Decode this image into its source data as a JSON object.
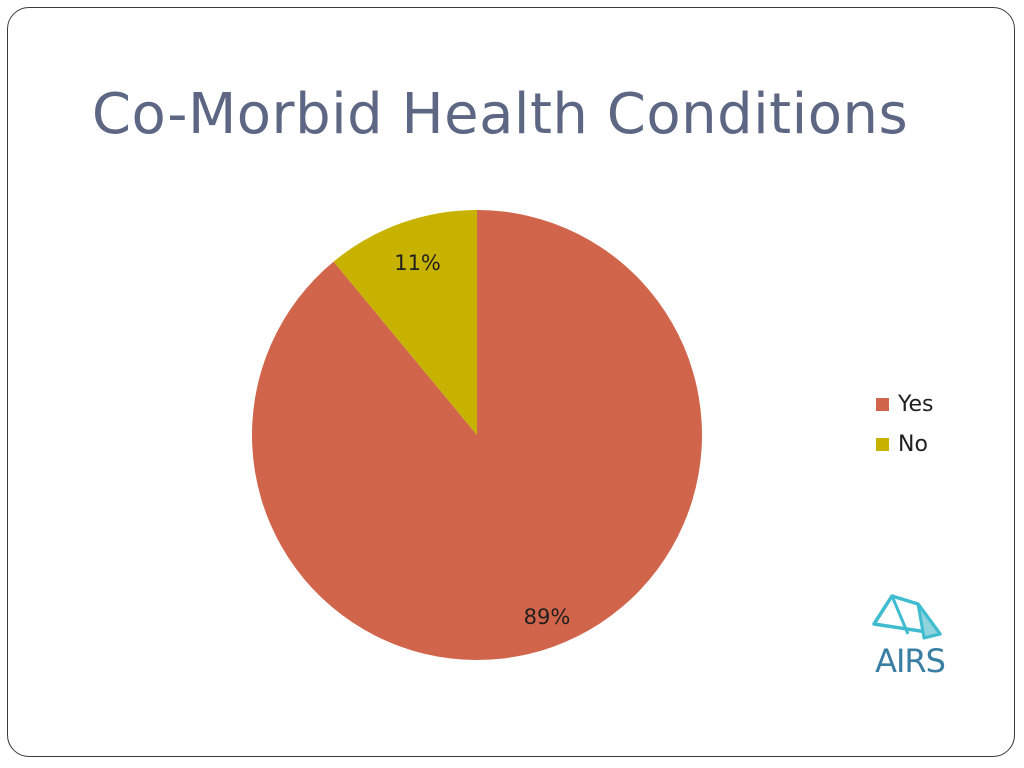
{
  "slide": {
    "title": "Co-Morbid Health Conditions"
  },
  "chart_data": {
    "type": "pie",
    "categories": [
      "Yes",
      "No"
    ],
    "values": [
      89,
      11
    ],
    "data_labels": [
      "89%",
      "11%"
    ],
    "colors": [
      "#d0654b",
      "#c8b200"
    ],
    "start_angle_deg": 0,
    "direction": "clockwise",
    "legend_position": "right",
    "legend": [
      "Yes",
      "No"
    ]
  },
  "logo": {
    "text": "AIRS",
    "icon": "airs-tent-logo-icon",
    "color": "#3fbcd0"
  }
}
